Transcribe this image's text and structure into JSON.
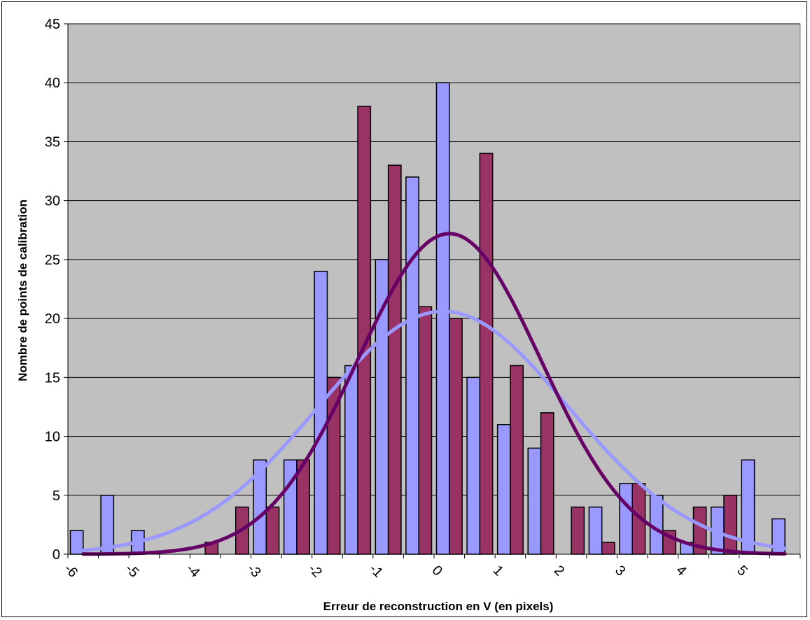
{
  "chart_data": {
    "type": "bar",
    "title": "",
    "xlabel": "Erreur de reconstruction en V (en pixels)",
    "ylabel": "Nombre de points de calibration",
    "ylim": [
      0,
      45
    ],
    "yticks": [
      0,
      5,
      10,
      15,
      20,
      25,
      30,
      35,
      40,
      45
    ],
    "xlim": [
      -6,
      6
    ],
    "xticks": [
      "-6",
      "-5",
      "-4",
      "-3",
      "-2",
      "-1",
      "0",
      "1",
      "2",
      "3",
      "4",
      "5"
    ],
    "grid": true,
    "legend": "none",
    "bin_centers": [
      -5.75,
      -5.25,
      -4.75,
      -4.25,
      -3.75,
      -3.25,
      -2.75,
      -2.25,
      -1.75,
      -1.25,
      -0.75,
      -0.25,
      0.25,
      0.75,
      1.25,
      1.75,
      2.25,
      2.75,
      3.25,
      3.75,
      4.25,
      4.75,
      5.25,
      5.75
    ],
    "series": [
      {
        "color": "#9999ff",
        "values": [
          2,
          5,
          2,
          0,
          0,
          0,
          8,
          8,
          24,
          16,
          25,
          32,
          40,
          15,
          11,
          9,
          0,
          4,
          6,
          5,
          1,
          4,
          8,
          3
        ]
      },
      {
        "color": "#993366",
        "values": [
          0,
          0,
          0,
          0,
          1,
          4,
          4,
          8,
          15,
          38,
          33,
          21,
          20,
          34,
          16,
          12,
          4,
          1,
          6,
          2,
          4,
          5,
          0,
          0
        ]
      }
    ],
    "curves": [
      {
        "color": "#9999ff",
        "type": "gaussian",
        "peak": 20.6,
        "mean": 0.15,
        "sigma": 2.05
      },
      {
        "color": "#660066",
        "type": "gaussian",
        "peak": 27.2,
        "mean": 0.25,
        "sigma": 1.5
      }
    ]
  }
}
